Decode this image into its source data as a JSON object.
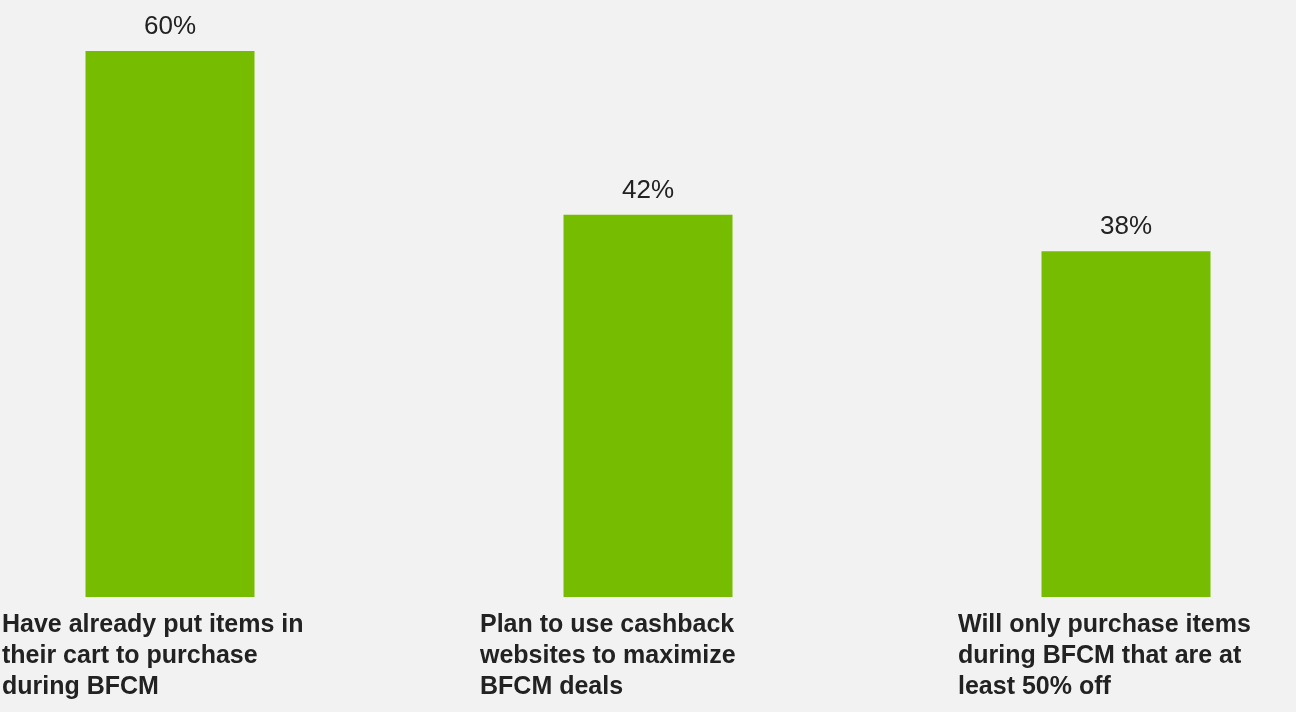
{
  "chart_data": {
    "type": "bar",
    "categories": [
      "Have already put items in their cart to purchase during BFCM",
      "Plan to use cashback websites to maximize BFCM deals",
      "Will only purchase items during BFCM that are at least 50% off"
    ],
    "values": [
      60,
      42,
      38
    ],
    "value_labels": [
      "60%",
      "42%",
      "38%"
    ],
    "color": "#76bc00",
    "grid": false,
    "tick_labels": "x"
  }
}
